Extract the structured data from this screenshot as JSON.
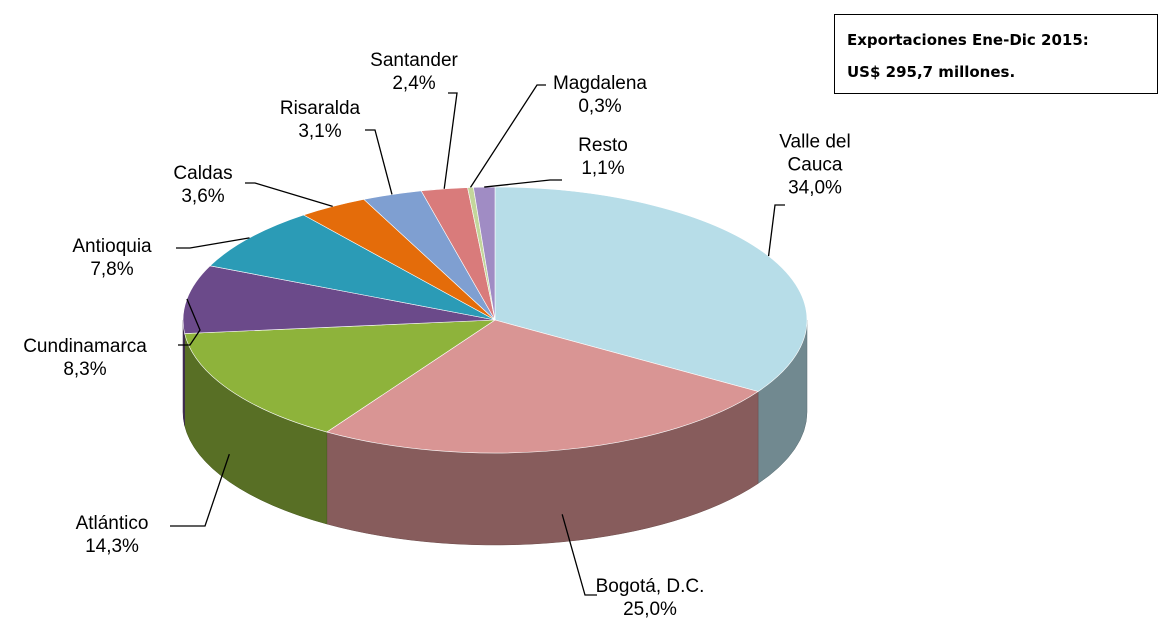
{
  "chart_data": {
    "type": "pie3d",
    "annotation": [
      "Exportaciones Ene-Dic 2015:",
      "US$ 295,7 millones."
    ],
    "categories": [
      "Valle del Cauca",
      "Bogotá, D.C.",
      "Atlántico",
      "Cundinamarca",
      "Antioquia",
      "Caldas",
      "Risaralda",
      "Santander",
      "Magdalena",
      "Resto"
    ],
    "values": [
      34.0,
      25.0,
      14.3,
      8.3,
      7.8,
      3.6,
      3.1,
      2.4,
      0.3,
      1.1
    ],
    "value_labels": [
      "34,0%",
      "25,0%",
      "14,3%",
      "8,3%",
      "7,8%",
      "3,6%",
      "3,1%",
      "2,4%",
      "0,3%",
      "1,1%"
    ],
    "colors": [
      "#b7dde8",
      "#d99594",
      "#8eb33b",
      "#6b4a8a",
      "#2b9bb6",
      "#e46c0a",
      "#7f9fd1",
      "#d97b7b",
      "#c3d69b",
      "#a08cc4"
    ]
  }
}
